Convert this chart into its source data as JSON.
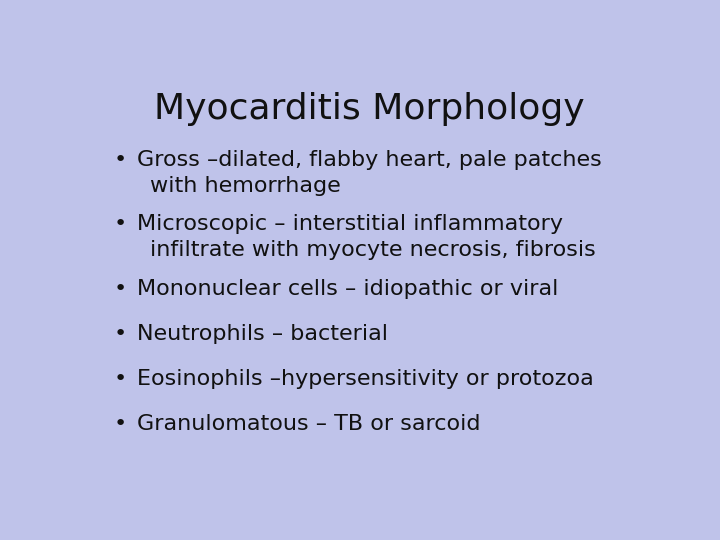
{
  "title": "Myocarditis Morphology",
  "background_color": "#bfc3ea",
  "title_color": "#111111",
  "text_color": "#111111",
  "title_fontsize": 26,
  "bullet_fontsize": 16,
  "bullet_items_line1": [
    "Gross –dilated, flabby heart, pale patches",
    "Microscopic – interstitial inflammatory",
    "Mononuclear cells – idiopathic or viral",
    "Neutrophils – bacterial",
    "Eosinophils –hypersensitivity or protozoa",
    "Granulomatous – TB or sarcoid"
  ],
  "bullet_items_line2": [
    "with hemorrhage",
    "infiltrate with myocyte necrosis, fibrosis",
    "",
    "",
    "",
    ""
  ]
}
